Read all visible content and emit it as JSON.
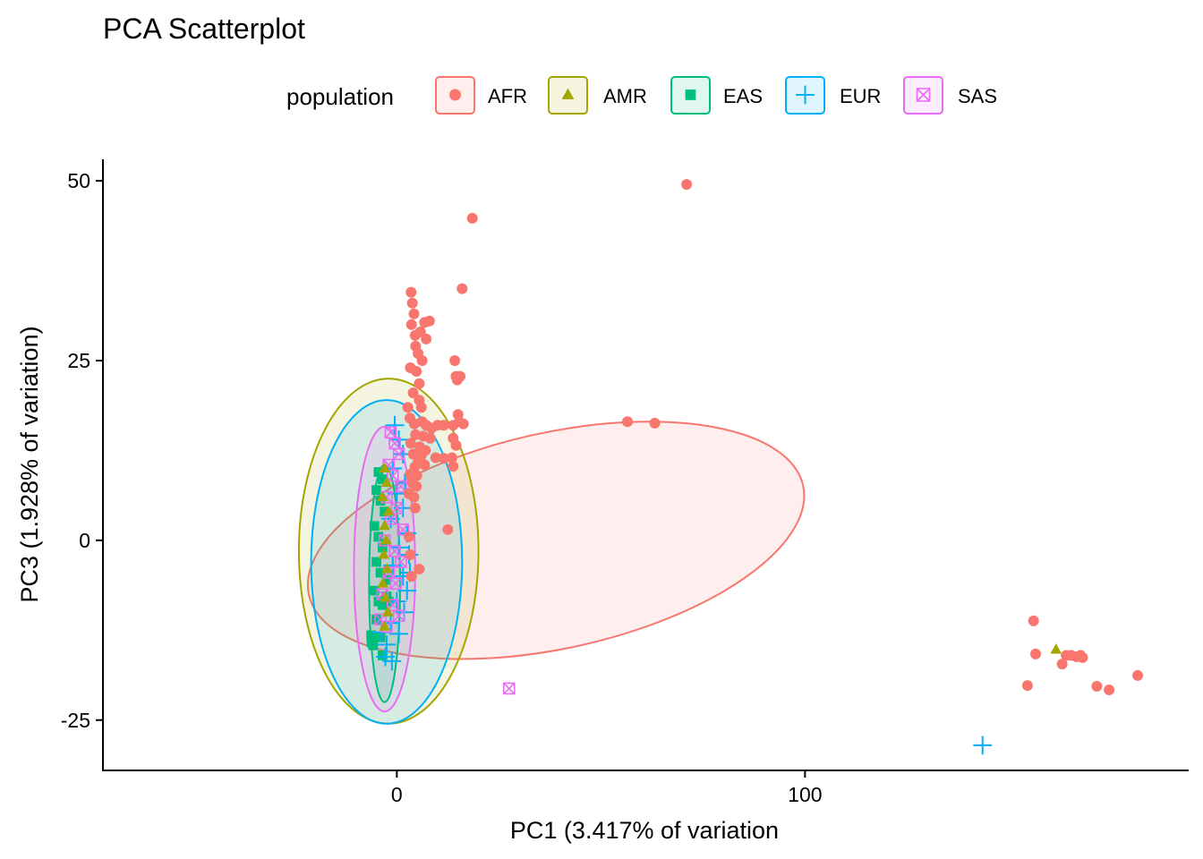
{
  "chart_data": {
    "type": "scatter",
    "title": "PCA Scatterplot",
    "xlabel": "PC1 (3.417% of variation",
    "ylabel": "PC3 (1.928% of variation)",
    "xlim": [
      -72,
      194
    ],
    "ylim": [
      -32,
      53
    ],
    "x_ticks": [
      0,
      100
    ],
    "x_tick_labels": [
      "0",
      "100"
    ],
    "y_ticks": [
      -25,
      0,
      25,
      50
    ],
    "y_tick_labels": [
      "-25",
      "0",
      "25",
      "50"
    ],
    "grid": false,
    "legend": {
      "title": "population",
      "placement": "top",
      "entries": [
        {
          "label": "AFR",
          "color": "#F8766D",
          "shape": "circle"
        },
        {
          "label": "AMR",
          "color": "#A3A500",
          "shape": "triangle"
        },
        {
          "label": "EAS",
          "color": "#00BF7D",
          "shape": "square"
        },
        {
          "label": "EUR",
          "color": "#00B0F6",
          "shape": "plus"
        },
        {
          "label": "SAS",
          "color": "#E76BF3",
          "shape": "boxed-x"
        }
      ]
    },
    "ellipses": [
      {
        "series": "AFR",
        "cx": 39,
        "cy": 0,
        "rx": 62,
        "ry": 15,
        "angle_deg": -12.5
      },
      {
        "series": "AMR",
        "cx": -2,
        "cy": -1.5,
        "rx": 22,
        "ry": 24,
        "angle_deg": 0
      },
      {
        "series": "EUR",
        "cx": -2.5,
        "cy": -3,
        "rx": 18.5,
        "ry": 22.5,
        "angle_deg": 0
      },
      {
        "series": "SAS",
        "cx": -3,
        "cy": -4,
        "rx": 7.5,
        "ry": 19.8,
        "angle_deg": 0
      },
      {
        "series": "EAS",
        "cx": -3,
        "cy": -6,
        "rx": 3.8,
        "ry": 16.5,
        "angle_deg": 0
      }
    ],
    "series": [
      {
        "name": "AFR",
        "points": [
          [
            71,
            49.5
          ],
          [
            18.5,
            44.8
          ],
          [
            16,
            35
          ],
          [
            3.5,
            34.5
          ],
          [
            3.8,
            33
          ],
          [
            4.2,
            31.5
          ],
          [
            3.6,
            30
          ],
          [
            4.5,
            28.5
          ],
          [
            6.8,
            30.3
          ],
          [
            8,
            30.5
          ],
          [
            5.8,
            29
          ],
          [
            7.2,
            28
          ],
          [
            4.6,
            27
          ],
          [
            5.2,
            26
          ],
          [
            6.2,
            25
          ],
          [
            3.3,
            24
          ],
          [
            4.8,
            23.5
          ],
          [
            5.5,
            21.8
          ],
          [
            14.2,
            25
          ],
          [
            14.5,
            22.8
          ],
          [
            15.5,
            22.8
          ],
          [
            14.8,
            22.3
          ],
          [
            4,
            20.5
          ],
          [
            5.5,
            19.5
          ],
          [
            2.7,
            18.5
          ],
          [
            6,
            18.5
          ],
          [
            15,
            17.5
          ],
          [
            15.3,
            16.5
          ],
          [
            16.3,
            16.2
          ],
          [
            13.8,
            16
          ],
          [
            56.5,
            16.5
          ],
          [
            63.2,
            16.3
          ],
          [
            3.2,
            17
          ],
          [
            4.3,
            16.2
          ],
          [
            6.2,
            16.5
          ],
          [
            7.2,
            16
          ],
          [
            8.5,
            15.6
          ],
          [
            10,
            16
          ],
          [
            11.5,
            16
          ],
          [
            4.6,
            14.7
          ],
          [
            6.5,
            14.5
          ],
          [
            8.2,
            14.2
          ],
          [
            13.8,
            14.2
          ],
          [
            14.5,
            13.2
          ],
          [
            3.4,
            13.5
          ],
          [
            5.6,
            13
          ],
          [
            7,
            12.5
          ],
          [
            4,
            12
          ],
          [
            6,
            11.8
          ],
          [
            9.5,
            11.5
          ],
          [
            11.5,
            11.4
          ],
          [
            13.5,
            11.5
          ],
          [
            5.2,
            11
          ],
          [
            4.4,
            10.2
          ],
          [
            6.8,
            10.5
          ],
          [
            3.3,
            9.2
          ],
          [
            4.9,
            9
          ],
          [
            13.8,
            10.3
          ],
          [
            3.8,
            8
          ],
          [
            4.8,
            7.5
          ],
          [
            2.9,
            6.5
          ],
          [
            4.2,
            6
          ],
          [
            4.5,
            4.5
          ],
          [
            12.5,
            1.5
          ],
          [
            5.5,
            -4
          ],
          [
            3,
            0.5
          ],
          [
            3.3,
            -2
          ],
          [
            3.6,
            -5
          ],
          [
            156,
            -11.2
          ],
          [
            156.5,
            -15.8
          ],
          [
            163,
            -17.2
          ],
          [
            164,
            -16
          ],
          [
            165.2,
            -16
          ],
          [
            166.5,
            -16.2
          ],
          [
            167.5,
            -16
          ],
          [
            168,
            -16.3
          ],
          [
            154.5,
            -20.2
          ],
          [
            171.5,
            -20.3
          ],
          [
            174.5,
            -20.8
          ],
          [
            181.5,
            -18.8
          ]
        ]
      },
      {
        "name": "AMR",
        "points": [
          [
            161.5,
            -15.2
          ],
          [
            -3,
            10
          ],
          [
            -2.5,
            8
          ],
          [
            -3.5,
            6
          ],
          [
            -2,
            4
          ],
          [
            -3,
            2
          ],
          [
            -2.6,
            0
          ],
          [
            -3.2,
            -2
          ],
          [
            -2.4,
            -4
          ],
          [
            -3.4,
            -6
          ],
          [
            -2.8,
            -8
          ],
          [
            -2.2,
            -10
          ],
          [
            -3,
            -12
          ]
        ]
      },
      {
        "name": "EAS",
        "points": [
          [
            -4.5,
            9.5
          ],
          [
            -3.5,
            8.5
          ],
          [
            -5,
            7
          ],
          [
            -4,
            5.5
          ],
          [
            -3,
            4
          ],
          [
            -5.5,
            2
          ],
          [
            -4.5,
            0.5
          ],
          [
            -3.5,
            -1
          ],
          [
            -5,
            -3
          ],
          [
            -4,
            -4.5
          ],
          [
            -2.5,
            -5.5
          ],
          [
            -5.5,
            -7
          ],
          [
            -4.5,
            -8.5
          ],
          [
            -3.5,
            -9
          ],
          [
            -2.5,
            -7.8
          ],
          [
            -5,
            -11
          ],
          [
            -4,
            -13.5
          ],
          [
            -3.5,
            -16
          ],
          [
            -2,
            -8.5
          ],
          [
            -6.3,
            -13.2
          ],
          [
            -6.2,
            -14.2
          ],
          [
            -5.8,
            -14.6
          ]
        ]
      },
      {
        "name": "EUR",
        "points": [
          [
            143.5,
            -28.5
          ],
          [
            -0.5,
            16
          ],
          [
            0.5,
            14
          ],
          [
            1.5,
            12
          ],
          [
            -1,
            10
          ],
          [
            2,
            8
          ],
          [
            0,
            6.5
          ],
          [
            1.5,
            4.5
          ],
          [
            -1.5,
            3
          ],
          [
            2.5,
            1
          ],
          [
            0.5,
            -1
          ],
          [
            3,
            -2
          ],
          [
            -1,
            -3.5
          ],
          [
            1.5,
            -5
          ],
          [
            2.5,
            -7
          ],
          [
            0,
            -8.5
          ],
          [
            1.8,
            -10
          ],
          [
            -1.5,
            -11.5
          ],
          [
            0.5,
            -13
          ],
          [
            -2.5,
            -14.5
          ],
          [
            -2.8,
            -16.2
          ],
          [
            -1.2,
            -16.8
          ],
          [
            -3.8,
            -12.8
          ],
          [
            3.2,
            -4.5
          ]
        ]
      },
      {
        "name": "SAS",
        "points": [
          [
            27.5,
            -20.6
          ],
          [
            -1.5,
            15
          ],
          [
            -0.5,
            13.5
          ],
          [
            0.5,
            12
          ],
          [
            -2,
            10.5
          ],
          [
            -1,
            9
          ],
          [
            1,
            7.5
          ],
          [
            -2.5,
            6
          ],
          [
            0,
            4.5
          ],
          [
            -1.5,
            3
          ],
          [
            1.5,
            1.5
          ],
          [
            -3,
            0
          ],
          [
            -0.5,
            -1.5
          ],
          [
            1,
            -3
          ],
          [
            -2,
            -4.5
          ],
          [
            -0.3,
            -6
          ],
          [
            -3.5,
            -7.5
          ],
          [
            -1,
            -9
          ],
          [
            0.5,
            -10.5
          ],
          [
            -2.5,
            -12
          ],
          [
            -4,
            -11
          ]
        ]
      }
    ]
  }
}
